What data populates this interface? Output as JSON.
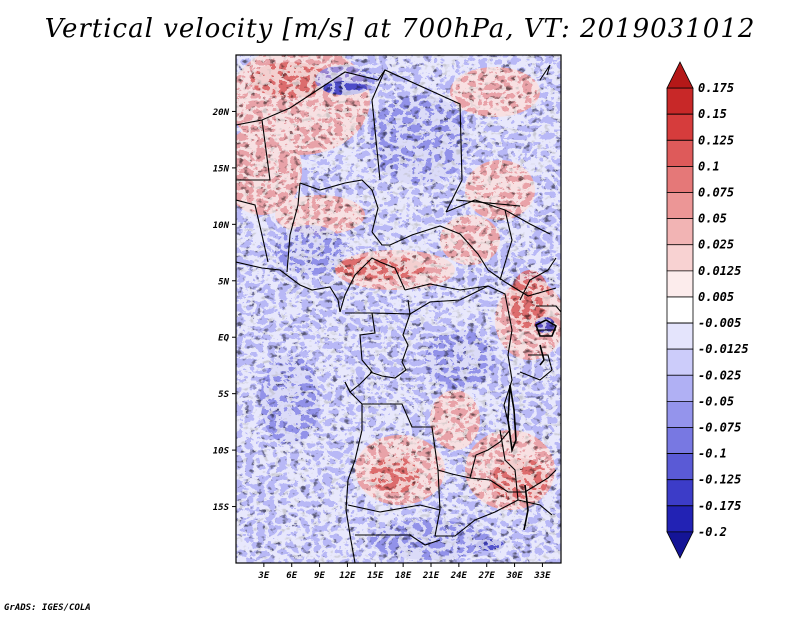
{
  "title": "Vertical velocity [m/s] at 700hPa, VT: 2019031012",
  "footer": "GrADS: IGES/COLA",
  "map": {
    "lon_range": [
      0,
      35
    ],
    "lat_range": [
      -20,
      25
    ],
    "lat_ticks": [
      {
        "value": 20,
        "label": "20N"
      },
      {
        "value": 15,
        "label": "15N"
      },
      {
        "value": 10,
        "label": "10N"
      },
      {
        "value": 5,
        "label": "5N"
      },
      {
        "value": 0,
        "label": "EQ"
      },
      {
        "value": -5,
        "label": "5S"
      },
      {
        "value": -10,
        "label": "10S"
      },
      {
        "value": -15,
        "label": "15S"
      }
    ],
    "lon_ticks": [
      {
        "value": 3,
        "label": "3E"
      },
      {
        "value": 6,
        "label": "6E"
      },
      {
        "value": 9,
        "label": "9E"
      },
      {
        "value": 12,
        "label": "12E"
      },
      {
        "value": 15,
        "label": "15E"
      },
      {
        "value": 18,
        "label": "18E"
      },
      {
        "value": 21,
        "label": "21E"
      },
      {
        "value": 24,
        "label": "24E"
      },
      {
        "value": 27,
        "label": "27E"
      },
      {
        "value": 30,
        "label": "30E"
      },
      {
        "value": 33,
        "label": "33E"
      }
    ]
  },
  "colorbar": {
    "labels": [
      "0.175",
      "0.15",
      "0.125",
      "0.1",
      "0.075",
      "0.05",
      "0.025",
      "0.0125",
      "0.005",
      "-0.005",
      "-0.0125",
      "-0.025",
      "-0.05",
      "-0.075",
      "-0.1",
      "-0.125",
      "-0.175",
      "-0.2"
    ],
    "colors": [
      "#b41818",
      "#c82828",
      "#d63c3c",
      "#de5a5a",
      "#e57878",
      "#ec9696",
      "#f2b4b4",
      "#f8d2d2",
      "#fcecec",
      "#ffffff",
      "#e4e4fc",
      "#ccccfa",
      "#b0b0f4",
      "#9494ec",
      "#7878e2",
      "#5a5ad6",
      "#3c3cc8",
      "#2222b4",
      "#141496"
    ]
  }
}
